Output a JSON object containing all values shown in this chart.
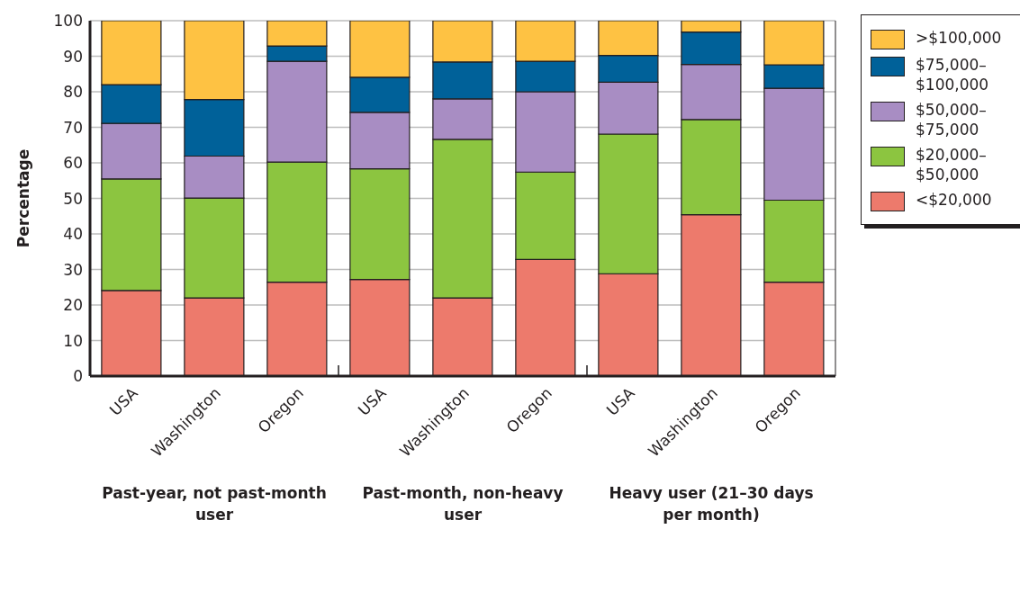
{
  "chart_data": {
    "type": "bar",
    "stacked": true,
    "ylabel": "Percentage",
    "categories": [
      "USA",
      "Washington",
      "Oregon",
      "USA",
      "Washington",
      "Oregon",
      "USA",
      "Washington",
      "Oregon"
    ],
    "series": [
      {
        "name": "<$20,000",
        "color": "#ed7a6c",
        "values": [
          24.1,
          22.0,
          26.4,
          27.2,
          22.0,
          32.8,
          28.8,
          45.4,
          26.4
        ]
      },
      {
        "name": "$20,000–$50,000",
        "color": "#8cc540",
        "values": [
          31.4,
          28.1,
          33.8,
          31.1,
          44.6,
          24.6,
          39.3,
          26.8,
          23.1
        ]
      },
      {
        "name": "$50,000–$75,000",
        "color": "#a88dc3",
        "values": [
          15.6,
          11.8,
          28.4,
          15.9,
          11.4,
          22.6,
          14.6,
          15.5,
          31.5
        ]
      },
      {
        "name": "$75,000–$100,000",
        "color": "#006199",
        "values": [
          10.9,
          15.9,
          4.3,
          9.9,
          10.4,
          8.6,
          7.5,
          9.1,
          6.6
        ]
      },
      {
        "name": ">$100,000",
        "color": "#fec243",
        "values": [
          18.0,
          22.2,
          7.1,
          15.9,
          11.6,
          11.4,
          9.8,
          3.2,
          12.4
        ]
      }
    ],
    "ylim": [
      0,
      100
    ],
    "yticks": [
      0,
      10,
      20,
      30,
      40,
      50,
      60,
      70,
      80,
      90,
      100
    ],
    "grid": "y",
    "legend": "top right",
    "annotations": [
      "Past-year, not past-month user",
      "Past-month, non-heavy user",
      "Heavy user (21–30 days per month)"
    ]
  }
}
